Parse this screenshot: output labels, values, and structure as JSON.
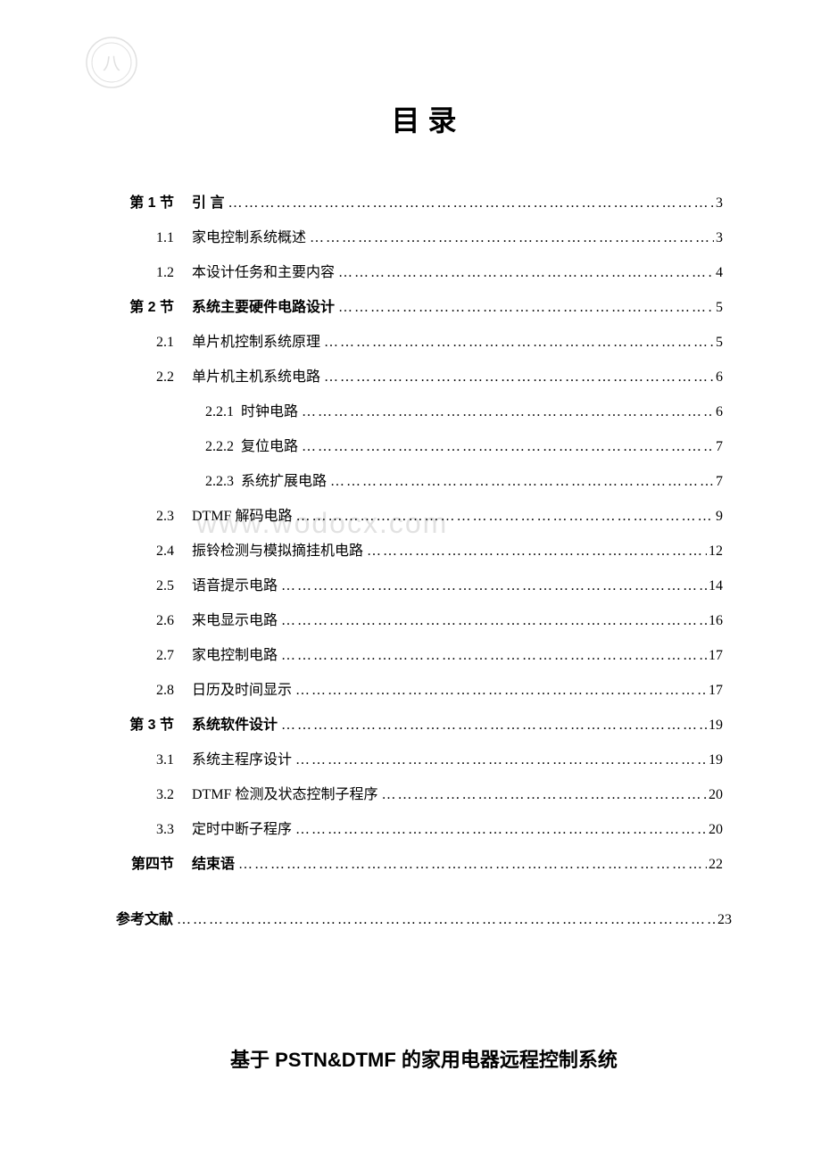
{
  "logo": {
    "name": "university-seal"
  },
  "title": "目 录",
  "watermark": "www.wodocx.com",
  "toc": [
    {
      "type": "section",
      "num": "第 1 节",
      "text": "引 言",
      "page": "3"
    },
    {
      "type": "sub",
      "num": "1.1",
      "text": "家电控制系统概述 ",
      "page": "3"
    },
    {
      "type": "sub",
      "num": "1.2",
      "text": "本设计任务和主要内容 ",
      "page": "4"
    },
    {
      "type": "section",
      "num": "第 2 节",
      "text": "系统主要硬件电路设计 ",
      "page": "5"
    },
    {
      "type": "sub",
      "num": "2.1",
      "text": "单片机控制系统原理",
      "page": "5"
    },
    {
      "type": "sub",
      "num": "2.2",
      "text": "单片机主机系统电路",
      "page": "6"
    },
    {
      "type": "subsub",
      "num": "2.2.1",
      "text": "时钟电路",
      "page": "6"
    },
    {
      "type": "subsub",
      "num": "2.2.2",
      "text": "复位电路",
      "page": "7"
    },
    {
      "type": "subsub",
      "num": "2.2.3",
      "text": "系统扩展电路",
      "page": "7"
    },
    {
      "type": "sub",
      "num": "2.3",
      "text": "DTMF 解码电路 ",
      "page": " 9"
    },
    {
      "type": "sub",
      "num": "2.4",
      "text": "振铃检测与模拟摘挂机电路  ",
      "page": "12"
    },
    {
      "type": "sub",
      "num": "2.5",
      "text": "语音提示电路  ",
      "page": "14"
    },
    {
      "type": "sub",
      "num": "2.6",
      "text": "来电显示电路  ",
      "page": "16"
    },
    {
      "type": "sub",
      "num": "2.7",
      "text": "家电控制电路  ",
      "page": "17"
    },
    {
      "type": "sub",
      "num": "2.8",
      "text": "日历及时间显示  ",
      "page": "17"
    },
    {
      "type": "section",
      "num": "第 3 节",
      "text": "系统软件设计 ",
      "page": "19"
    },
    {
      "type": "sub",
      "num": "3.1",
      "text": "系统主程序设计",
      "page": "19"
    },
    {
      "type": "sub",
      "num": "3.2",
      "text": "DTMF 检测及状态控制子程序",
      "page": "20"
    },
    {
      "type": "sub",
      "num": "3.3",
      "text": "定时中断子程序",
      "page": "20"
    },
    {
      "type": "section",
      "num": "第四节",
      "text": "结束语",
      "page": "22"
    }
  ],
  "references": {
    "label": "参考文献",
    "page": "23"
  },
  "bottom_title": "基于 PSTN&DTMF 的家用电器远程控制系统",
  "colors": {
    "text": "#000000",
    "background": "#ffffff",
    "watermark": "#d0d0d0"
  },
  "fonts": {
    "title_size": 32,
    "body_size": 16,
    "bottom_title_size": 22
  },
  "dots": "………………………………………………………………………………………………………………………………"
}
